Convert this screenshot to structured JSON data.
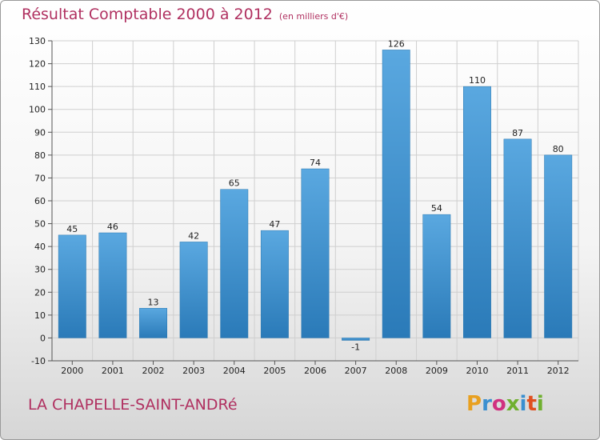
{
  "header": {
    "title": "Résultat Comptable 2000 à 2012",
    "unit": "(en milliers d'€)"
  },
  "footer": {
    "commune": "LA CHAPELLE-SAINT-ANDRé",
    "logo_text": "Proxiti"
  },
  "colors": {
    "title": "#b03060",
    "bar_top": "#5aa8e0",
    "bar_bottom": "#2a7ab8",
    "grid": "#cfcfcf",
    "logo_letters": [
      "#e8a020",
      "#3a8fd0",
      "#d03080",
      "#70b030",
      "#3a8fd0",
      "#e05020",
      "#70b030"
    ]
  },
  "chart_data": {
    "type": "bar",
    "title": "Résultat Comptable 2000 à 2012",
    "subtitle": "(en milliers d'€)",
    "categories": [
      "2000",
      "2001",
      "2002",
      "2003",
      "2004",
      "2005",
      "2006",
      "2007",
      "2008",
      "2009",
      "2010",
      "2011",
      "2012"
    ],
    "values": [
      45,
      46,
      13,
      42,
      65,
      47,
      74,
      -1,
      126,
      54,
      110,
      87,
      80
    ],
    "data_labels": [
      "45",
      "46",
      "13",
      "42",
      "65",
      "47",
      "74",
      "-1",
      "126",
      "54",
      "110",
      "87",
      "80"
    ],
    "yticks": [
      "-10",
      "0",
      "10",
      "20",
      "30",
      "40",
      "50",
      "60",
      "70",
      "80",
      "90",
      "100",
      "110",
      "120",
      "130"
    ],
    "ylim": [
      -10,
      130
    ],
    "grid": true,
    "xlabel": "",
    "ylabel": ""
  }
}
